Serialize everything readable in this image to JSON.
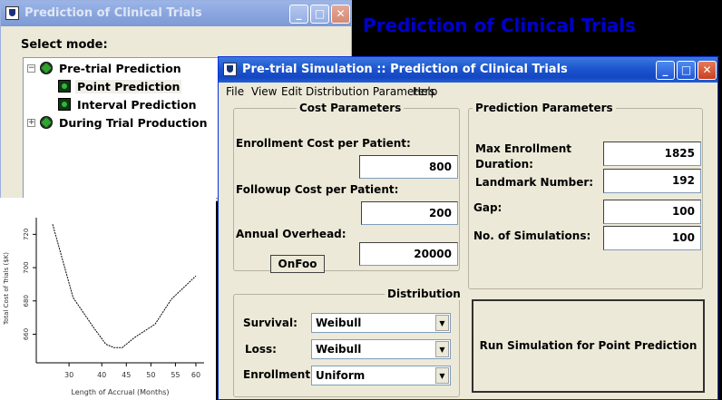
{
  "back_window": {
    "title": "Prediction of Clinical Trials",
    "select_mode_label": "Select mode:",
    "tree": {
      "pretrial": "Pre-trial Prediction",
      "point": "Point Prediction",
      "interval": "Interval Prediction",
      "during": "During Trial Production"
    }
  },
  "banner": {
    "text": "Prediction of Clinical Trials",
    "color": "#0000cc"
  },
  "chart_data": {
    "type": "line",
    "xlabel": "Length of Accrual (Months)",
    "ylabel": "Total Cost of Trials ($K)",
    "x_ticks": [
      "30",
      "40",
      "45",
      "50",
      "55",
      "60"
    ],
    "y_ticks": [
      "720",
      "700",
      "680",
      "660"
    ],
    "x": [
      26,
      31,
      36,
      39,
      41,
      43,
      46,
      51,
      55,
      61
    ],
    "y": [
      726,
      682,
      664,
      654,
      652,
      652,
      658,
      666,
      681,
      695
    ]
  },
  "front_window": {
    "title": "Pre-trial Simulation :: Prediction of Clinical Trials",
    "menu": [
      "File",
      "View",
      "Edit Distribution Parameters",
      "Help"
    ],
    "cost": {
      "title": "Cost Parameters",
      "enrollment_label": "Enrollment Cost per Patient:",
      "enrollment_value": "800",
      "followup_label": "Followup Cost per Patient:",
      "followup_value": "200",
      "overhead_label": "Annual Overhead:",
      "overhead_value": "20000",
      "onfoo_button": "OnFoo"
    },
    "prediction": {
      "title": "Prediction Parameters",
      "max_enrollment_label": "Max Enrollment Duration:",
      "max_enrollment_value": "1825",
      "landmark_label": "Landmark Number:",
      "landmark_value": "192",
      "gap_label": "Gap:",
      "gap_value": "100",
      "simulations_label": "No. of Simulations:",
      "simulations_value": "100"
    },
    "distribution": {
      "title": "Distribution",
      "survival_label": "Survival:",
      "survival_value": "Weibull",
      "loss_label": "Loss:",
      "loss_value": "Weibull",
      "enrollment_label": "Enrollment:",
      "enrollment_value": "Uniform"
    },
    "run_button": "Run Simulation for Point Prediction"
  }
}
